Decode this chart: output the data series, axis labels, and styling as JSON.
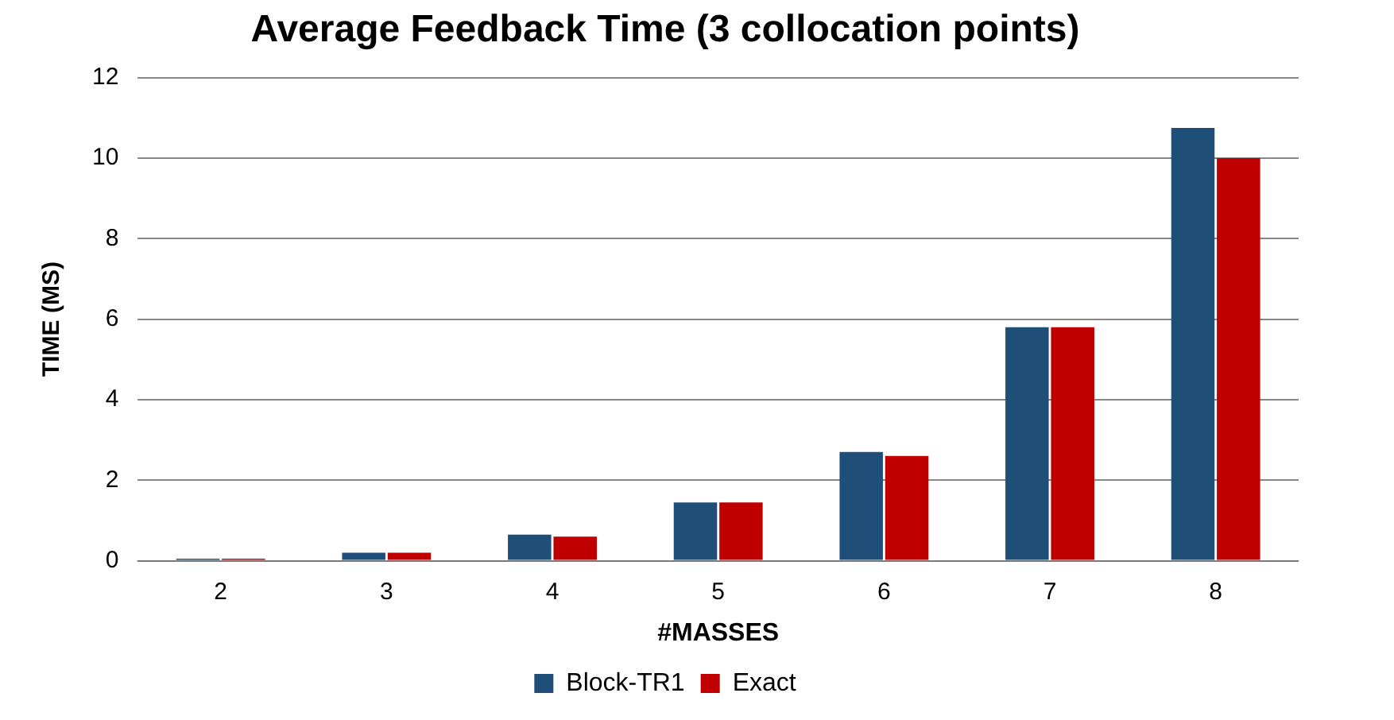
{
  "chart_data": {
    "type": "bar",
    "title": "Average Feedback Time (3 collocation points)",
    "xlabel": "#MASSES",
    "ylabel": "TIME (MS)",
    "categories": [
      "2",
      "3",
      "4",
      "5",
      "6",
      "7",
      "8"
    ],
    "series": [
      {
        "name": "Block-TR1",
        "color": "#1f4e79",
        "values": [
          0.05,
          0.2,
          0.65,
          1.45,
          2.7,
          5.8,
          10.75
        ]
      },
      {
        "name": "Exact",
        "color": "#c00000",
        "values": [
          0.05,
          0.2,
          0.6,
          1.45,
          2.6,
          5.8,
          10
        ]
      }
    ],
    "ylim": [
      0,
      12
    ],
    "yticks": [
      0,
      2,
      4,
      6,
      8,
      10,
      12
    ],
    "grid": "y",
    "legend": "bottom"
  }
}
